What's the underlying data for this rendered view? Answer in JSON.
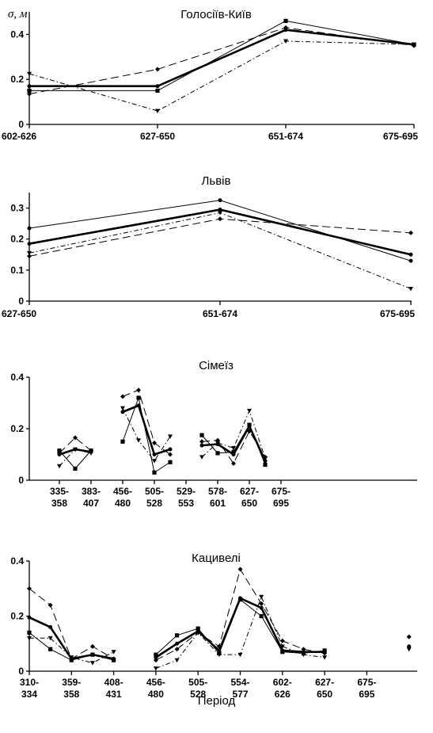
{
  "y_axis_label": "σ, м",
  "x_axis_label": "Період",
  "chart_data": [
    {
      "type": "line",
      "title": "Голосіїв-Київ",
      "ylim": [
        0,
        0.5
      ],
      "yticks": [
        "0",
        "0.2",
        "0.4"
      ],
      "categories": [
        "602-626",
        "627-650",
        "651-674",
        "675-695"
      ],
      "series": [
        {
          "style": "thick",
          "values": [
            0.17,
            0.17,
            0.42,
            0.355
          ]
        },
        {
          "style": "thin-square",
          "values": [
            0.15,
            0.15,
            0.46,
            0.355
          ]
        },
        {
          "style": "dash-diamond",
          "values": [
            0.135,
            0.245,
            0.43,
            0.35
          ]
        },
        {
          "style": "dashdot-triangle",
          "values": [
            0.225,
            0.06,
            0.37,
            0.355
          ]
        }
      ]
    },
    {
      "type": "line",
      "title": "Львів",
      "ylim": [
        0,
        0.35
      ],
      "yticks": [
        "0",
        "0.1",
        "0.2",
        "0.3"
      ],
      "categories": [
        "627-650",
        "651-674",
        "675-695"
      ],
      "series": [
        {
          "style": "thick",
          "values": [
            0.185,
            0.295,
            0.15
          ]
        },
        {
          "style": "thin-circle",
          "values": [
            0.235,
            0.325,
            0.13
          ]
        },
        {
          "style": "dash-diamond",
          "values": [
            0.145,
            0.265,
            0.22
          ]
        },
        {
          "style": "dashdot-triangle",
          "values": [
            0.155,
            0.285,
            0.04
          ]
        }
      ]
    },
    {
      "type": "line",
      "title": "Сімеїз",
      "ylim": [
        0,
        0.4
      ],
      "yticks": [
        "0",
        "0.2",
        "0.4"
      ],
      "categories": [
        "335-358",
        "383-407",
        "456-480",
        "505-528",
        "529-553",
        "578-601",
        "627-650",
        "675-695"
      ],
      "series": [
        {
          "style": "thick",
          "points": [
            [
              0,
              0.1
            ],
            [
              0.5,
              0.12
            ],
            [
              1,
              0.11
            ],
            [
              null,
              null
            ],
            [
              2,
              0.265
            ],
            [
              2.5,
              0.29
            ],
            [
              3,
              0.1
            ],
            [
              3.5,
              0.12
            ],
            [
              null,
              null
            ],
            [
              4.5,
              0.135
            ],
            [
              5,
              0.14
            ],
            [
              5.5,
              0.1
            ],
            [
              6,
              0.21
            ],
            [
              6.5,
              0.075
            ]
          ]
        },
        {
          "style": "thin-square",
          "points": [
            [
              0,
              0.115
            ],
            [
              0.5,
              0.045
            ],
            [
              1,
              0.115
            ],
            [
              null,
              null
            ],
            [
              2,
              0.15
            ],
            [
              2.5,
              0.32
            ],
            [
              3,
              0.03
            ],
            [
              3.5,
              0.07
            ],
            [
              null,
              null
            ],
            [
              4.5,
              0.175
            ],
            [
              5,
              0.105
            ],
            [
              5.5,
              0.11
            ],
            [
              6,
              0.215
            ],
            [
              6.5,
              0.06
            ]
          ]
        },
        {
          "style": "dash-diamond",
          "points": [
            [
              0,
              0.105
            ],
            [
              0.5,
              0.165
            ],
            [
              1,
              0.115
            ],
            [
              null,
              null
            ],
            [
              2,
              0.325
            ],
            [
              2.5,
              0.35
            ],
            [
              3,
              0.145
            ],
            [
              3.5,
              0.1
            ],
            [
              null,
              null
            ],
            [
              4.5,
              0.15
            ],
            [
              5,
              0.155
            ],
            [
              5.5,
              0.065
            ],
            [
              6,
              0.19
            ],
            [
              6.5,
              0.09
            ]
          ]
        },
        {
          "style": "dashdot-triangle",
          "points": [
            [
              0,
              0.055
            ],
            [
              0.5,
              0.12
            ],
            [
              1,
              0.105
            ],
            [
              null,
              null
            ],
            [
              2,
              0.28
            ],
            [
              2.5,
              0.155
            ],
            [
              3,
              0.075
            ],
            [
              3.5,
              0.17
            ],
            [
              null,
              null
            ],
            [
              4.5,
              0.09
            ],
            [
              5,
              0.145
            ],
            [
              5.5,
              0.125
            ],
            [
              6,
              0.27
            ],
            [
              6.5,
              0.085
            ]
          ]
        }
      ]
    },
    {
      "type": "line",
      "title": "Кацивелі",
      "ylim": [
        0,
        0.4
      ],
      "yticks": [
        "0",
        "0.2",
        "0.4"
      ],
      "categories": [
        "310-334",
        "359-358",
        "408-431",
        "456-480",
        "505-528",
        "554-577",
        "602-626",
        "627-650",
        "675-695"
      ],
      "series": [
        {
          "style": "thick",
          "points": [
            [
              0,
              0.195
            ],
            [
              0.5,
              0.16
            ],
            [
              1,
              0.045
            ],
            [
              1.5,
              0.06
            ],
            [
              2,
              0.045
            ],
            [
              null,
              null
            ],
            [
              3,
              0.05
            ],
            [
              3.5,
              0.1
            ],
            [
              4,
              0.145
            ],
            [
              4.5,
              0.075
            ],
            [
              5,
              0.265
            ],
            [
              5.5,
              0.23
            ],
            [
              6,
              0.075
            ],
            [
              6.5,
              0.07
            ],
            [
              7,
              0.07
            ]
          ]
        },
        {
          "style": "thin-square",
          "points": [
            [
              0,
              0.14
            ],
            [
              0.5,
              0.08
            ],
            [
              1,
              0.04
            ],
            [
              1.5,
              0.06
            ],
            [
              2,
              0.04
            ],
            [
              null,
              null
            ],
            [
              3,
              0.06
            ],
            [
              3.5,
              0.13
            ],
            [
              4,
              0.155
            ],
            [
              4.5,
              0.065
            ],
            [
              5,
              0.26
            ],
            [
              5.5,
              0.2
            ],
            [
              6,
              0.07
            ],
            [
              6.5,
              0.065
            ],
            [
              7,
              0.075
            ]
          ]
        },
        {
          "style": "dash-diamond",
          "points": [
            [
              0,
              0.3
            ],
            [
              0.5,
              0.24
            ],
            [
              1,
              0.045
            ],
            [
              1.5,
              0.09
            ],
            [
              2,
              0.045
            ],
            [
              null,
              null
            ],
            [
              3,
              0.04
            ],
            [
              3.5,
              0.08
            ],
            [
              4,
              0.14
            ],
            [
              4.5,
              0.09
            ],
            [
              5,
              0.37
            ],
            [
              5.5,
              0.245
            ],
            [
              6,
              0.11
            ],
            [
              6.5,
              0.08
            ],
            [
              7,
              0.065
            ],
            [
              null,
              null
            ],
            [
              9,
              0.125
            ]
          ]
        },
        {
          "style": "dashdot-triangle",
          "points": [
            [
              0,
              0.12
            ],
            [
              0.5,
              0.12
            ],
            [
              1,
              0.05
            ],
            [
              1.5,
              0.03
            ],
            [
              2,
              0.07
            ],
            [
              null,
              null
            ],
            [
              3,
              0.01
            ],
            [
              3.5,
              0.04
            ],
            [
              4,
              0.14
            ],
            [
              4.5,
              0.06
            ],
            [
              5,
              0.06
            ],
            [
              5.5,
              0.27
            ],
            [
              6,
              0.09
            ],
            [
              6.5,
              0.06
            ],
            [
              7,
              0.05
            ],
            [
              null,
              null
            ],
            [
              9,
              0.08
            ]
          ]
        },
        {
          "style": "markers-only",
          "points": [
            [
              9,
              0.09
            ]
          ]
        }
      ]
    }
  ]
}
